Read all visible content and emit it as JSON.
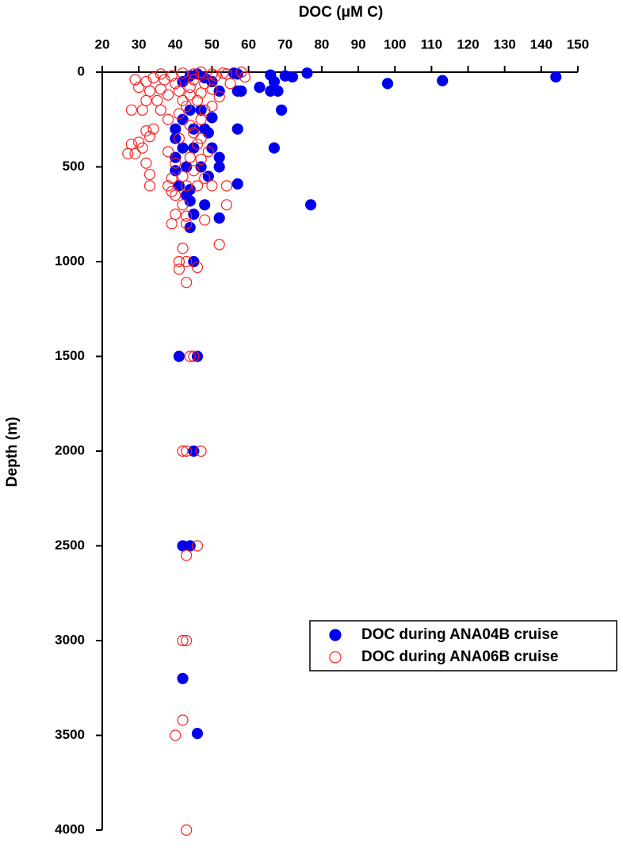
{
  "chart_data": {
    "type": "scatter",
    "xlabel": "DOC (μM C)",
    "ylabel": "Depth (m)",
    "xlim": [
      20,
      150
    ],
    "xticks": [
      20,
      30,
      40,
      50,
      60,
      70,
      80,
      90,
      100,
      110,
      120,
      130,
      140,
      150
    ],
    "ylim": [
      0,
      4000
    ],
    "yticks": [
      0,
      500,
      1000,
      1500,
      2000,
      2500,
      3000,
      3500,
      4000
    ],
    "y_inverted": true,
    "x_axis_position": "top",
    "legend": "right",
    "series": [
      {
        "name": "DOC during ANA04B cruise",
        "color": "#0000ee",
        "filled": true,
        "x": [
          144,
          113,
          98,
          76,
          72,
          70,
          66,
          67,
          68,
          66,
          63,
          57,
          56,
          58,
          57,
          52,
          50,
          48,
          46,
          44,
          42,
          69,
          67,
          57,
          50,
          48,
          49,
          47,
          45,
          44,
          42,
          40,
          40,
          42,
          45,
          50,
          52,
          52,
          47,
          43,
          40,
          40,
          49,
          41,
          44,
          57,
          77,
          48,
          44,
          43,
          45,
          52,
          44,
          45,
          41,
          46,
          45,
          42,
          44,
          42,
          46
        ],
        "values": [
          25,
          45,
          60,
          5,
          25,
          20,
          15,
          50,
          100,
          100,
          80,
          10,
          5,
          100,
          100,
          100,
          50,
          30,
          10,
          20,
          50,
          200,
          400,
          300,
          240,
          300,
          320,
          200,
          300,
          200,
          250,
          300,
          350,
          400,
          400,
          400,
          450,
          500,
          500,
          500,
          450,
          520,
          550,
          600,
          620,
          590,
          700,
          700,
          680,
          650,
          750,
          770,
          820,
          1000,
          1500,
          1500,
          2000,
          2500,
          2500,
          3200,
          3490
        ]
      },
      {
        "name": "DOC during ANA06B cruise",
        "color": "#ff2020",
        "filled": false,
        "x": [
          58,
          53,
          50,
          47,
          45,
          42,
          39,
          36,
          34,
          32,
          29,
          30,
          33,
          36,
          38,
          35,
          32,
          31,
          28,
          36,
          38,
          34,
          32,
          33,
          30,
          28,
          27,
          29,
          31,
          32,
          33,
          33,
          38,
          39,
          43,
          46,
          48,
          50,
          54,
          54,
          48,
          43,
          40,
          39,
          43,
          52,
          42,
          41,
          43,
          46,
          41,
          43,
          44,
          45,
          42,
          43,
          47,
          46,
          43,
          42,
          43,
          42,
          40,
          43,
          45,
          48,
          50,
          52,
          50,
          47,
          45,
          47,
          49,
          47,
          45,
          42,
          40,
          38,
          41,
          44,
          42,
          44,
          55,
          59,
          40,
          37,
          41,
          46,
          48,
          44,
          42,
          40,
          51,
          54,
          44,
          47,
          43,
          41,
          46,
          39
        ],
        "values": [
          0,
          5,
          10,
          0,
          10,
          5,
          20,
          10,
          30,
          50,
          40,
          80,
          100,
          90,
          120,
          150,
          150,
          200,
          200,
          200,
          250,
          300,
          310,
          340,
          370,
          380,
          430,
          430,
          400,
          480,
          540,
          600,
          600,
          630,
          600,
          600,
          560,
          600,
          600,
          700,
          780,
          760,
          750,
          800,
          800,
          910,
          930,
          1000,
          1000,
          1030,
          1040,
          1110,
          1500,
          1500,
          2000,
          2000,
          2000,
          2500,
          2550,
          3000,
          3000,
          3420,
          3500,
          4000,
          40,
          60,
          90,
          130,
          180,
          250,
          320,
          350,
          420,
          460,
          520,
          550,
          480,
          420,
          350,
          280,
          150,
          120,
          60,
          25,
          60,
          40,
          100,
          150,
          200,
          450,
          700,
          650,
          20,
          10,
          80,
          110,
          180,
          220,
          380,
          560
        ]
      }
    ]
  }
}
